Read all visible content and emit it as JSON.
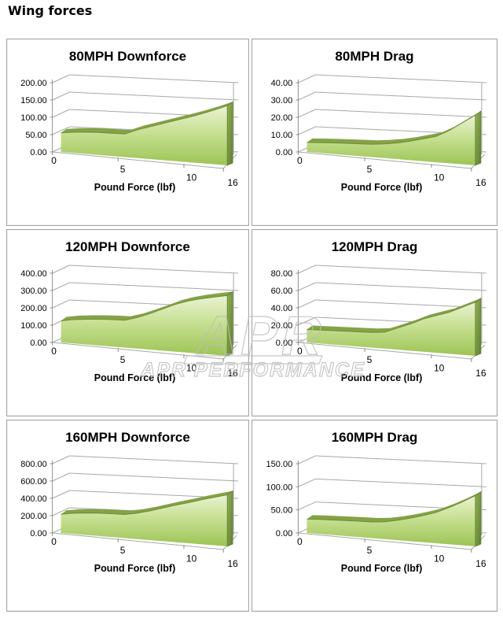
{
  "page_title": "Wing forces",
  "watermark": {
    "logo": "APR",
    "text": "APR PERFORMANCE"
  },
  "xaxis_note": "category axis, ticks at 0 / 5 / 10 / 16 lbf",
  "chart_data": [
    {
      "type": "area",
      "title": "80MPH Downforce",
      "xlabel": "Pound Force (lbf)",
      "x": [
        0,
        1,
        2,
        3,
        4,
        5,
        6,
        7,
        8,
        9,
        10,
        12,
        14,
        16
      ],
      "values": [
        55,
        60,
        63,
        65,
        66,
        67,
        82,
        94,
        106,
        118,
        130,
        143,
        157,
        172
      ],
      "ylim": [
        0,
        200
      ],
      "ytick_labels": [
        "0.00",
        "50.00",
        "100.00",
        "150.00",
        "200.00"
      ],
      "xtick_labels": [
        "0",
        "5",
        "10",
        "16"
      ],
      "grid": true,
      "legend": false
    },
    {
      "type": "area",
      "title": "80MPH Drag",
      "xlabel": "Pound Force (lbf)",
      "x": [
        0,
        1,
        2,
        3,
        4,
        5,
        6,
        7,
        8,
        9,
        10,
        12,
        14,
        16
      ],
      "values": [
        5.5,
        6,
        6.4,
        6.8,
        7.1,
        7.4,
        8.2,
        9.4,
        11,
        13,
        15,
        19,
        24,
        29
      ],
      "ylim": [
        0,
        40
      ],
      "ytick_labels": [
        "0.00",
        "10.00",
        "20.00",
        "30.00",
        "40.00"
      ],
      "xtick_labels": [
        "0",
        "5",
        "10",
        "16"
      ],
      "grid": true,
      "legend": false
    },
    {
      "type": "area",
      "title": "120MPH Downforce",
      "xlabel": "Pound Force (lbf)",
      "x": [
        0,
        1,
        2,
        3,
        4,
        5,
        6,
        7,
        8,
        9,
        10,
        12,
        14,
        16
      ],
      "values": [
        125,
        138,
        146,
        152,
        156,
        158,
        180,
        210,
        242,
        275,
        300,
        318,
        334,
        348
      ],
      "ylim": [
        0,
        400
      ],
      "ytick_labels": [
        "0.00",
        "100.00",
        "200.00",
        "300.00",
        "400.00"
      ],
      "xtick_labels": [
        "0",
        "5",
        "10",
        "16"
      ],
      "grid": true,
      "legend": false
    },
    {
      "type": "area",
      "title": "120MPH Drag",
      "xlabel": "Pound Force (lbf)",
      "x": [
        0,
        1,
        2,
        3,
        4,
        5,
        6,
        7,
        8,
        9,
        10,
        12,
        14,
        16
      ],
      "values": [
        15,
        15.5,
        16,
        16.5,
        17,
        17.5,
        19,
        25,
        31,
        38,
        43,
        48,
        55,
        62
      ],
      "ylim": [
        0,
        80
      ],
      "ytick_labels": [
        "0.00",
        "20.00",
        "40.00",
        "60.00",
        "80.00"
      ],
      "xtick_labels": [
        "0",
        "5",
        "10",
        "16"
      ],
      "grid": true,
      "legend": false
    },
    {
      "type": "area",
      "title": "160MPH Downforce",
      "xlabel": "Pound Force (lbf)",
      "x": [
        0,
        1,
        2,
        3,
        4,
        5,
        6,
        7,
        8,
        9,
        10,
        12,
        14,
        16
      ],
      "values": [
        215,
        240,
        255,
        265,
        270,
        273,
        300,
        340,
        385,
        430,
        470,
        515,
        555,
        595
      ],
      "ylim": [
        0,
        800
      ],
      "ytick_labels": [
        "0.00",
        "200.00",
        "400.00",
        "600.00",
        "800.00"
      ],
      "xtick_labels": [
        "0",
        "5",
        "10",
        "16"
      ],
      "grid": true,
      "legend": false
    },
    {
      "type": "area",
      "title": "160MPH Drag",
      "xlabel": "Pound Force (lbf)",
      "x": [
        0,
        1,
        2,
        3,
        4,
        5,
        6,
        7,
        8,
        9,
        10,
        12,
        14,
        16
      ],
      "values": [
        30,
        31.5,
        32.5,
        33.5,
        34.5,
        35,
        37.5,
        43,
        50,
        58,
        67,
        80,
        94,
        110
      ],
      "ylim": [
        0,
        150
      ],
      "ytick_labels": [
        "0.00",
        "50.00",
        "100.00",
        "150.00"
      ],
      "xtick_labels": [
        "0",
        "5",
        "10",
        "16"
      ],
      "grid": true,
      "legend": false
    }
  ],
  "style": {
    "face_top": "#eaf3d2",
    "face_mid": "#c7e092",
    "face_bottom": "#9cc455",
    "rim": "#83a346",
    "rim_line": "#6f8c38",
    "cap_light": "#90b153",
    "cap_dark": "#617d32",
    "grid_line": "#a8a8a8",
    "axis_line": "#8f8f8f",
    "watermark": "#bdbdbd"
  }
}
